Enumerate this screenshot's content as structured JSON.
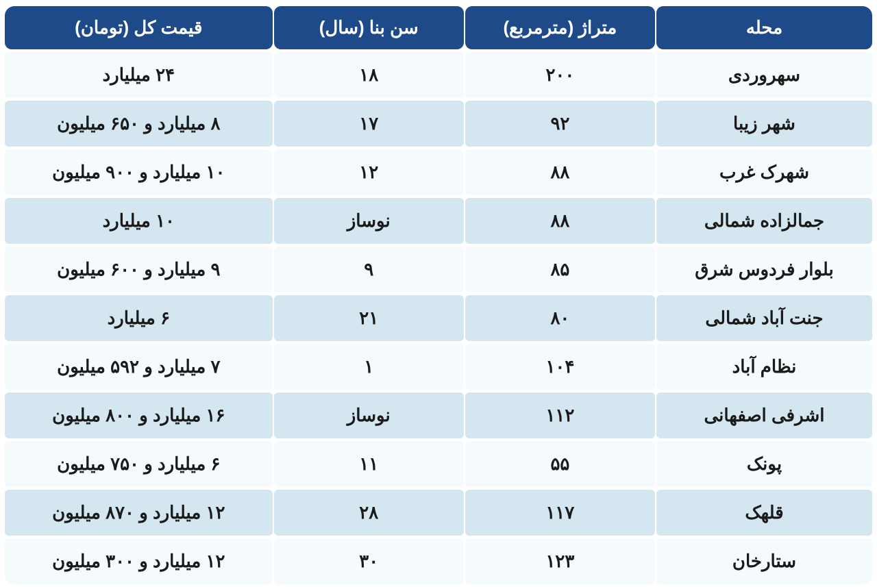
{
  "table": {
    "columns": [
      {
        "key": "neighborhood",
        "label": "محله",
        "class": "col-neighborhood"
      },
      {
        "key": "area",
        "label": "متراژ (مترمربع)",
        "class": "col-area"
      },
      {
        "key": "age",
        "label": "سن بنا (سال)",
        "class": "col-age"
      },
      {
        "key": "price",
        "label": "قیمت کل (تومان)",
        "class": "col-price"
      }
    ],
    "rows": [
      {
        "neighborhood": "سهروردی",
        "area": "۲۰۰",
        "age": "۱۸",
        "price": "۲۴ میلیارد"
      },
      {
        "neighborhood": "شهر زیبا",
        "area": "۹۲",
        "age": "۱۷",
        "price": "۸ میلیارد و ۶۵۰ میلیون"
      },
      {
        "neighborhood": "شهرک غرب",
        "area": "۸۸",
        "age": "۱۲",
        "price": "۱۰ میلیارد و ۹۰۰ میلیون"
      },
      {
        "neighborhood": "جمالزاده شمالی",
        "area": "۸۸",
        "age": "نوساز",
        "price": "۱۰ میلیارد"
      },
      {
        "neighborhood": "بلوار فردوس شرق",
        "area": "۸۵",
        "age": "۹",
        "price": "۹ میلیارد و ۶۰۰ میلیون"
      },
      {
        "neighborhood": "جنت آباد شمالی",
        "area": "۸۰",
        "age": "۲۱",
        "price": "۶ میلیارد"
      },
      {
        "neighborhood": "نظام آباد",
        "area": "۱۰۴",
        "age": "۱",
        "price": "۷ میلیارد و ۵۹۲ میلیون"
      },
      {
        "neighborhood": "اشرفی اصفهانی",
        "area": "۱۱۲",
        "age": "نوساز",
        "price": "۱۶ میلیارد و ۸۰۰ میلیون"
      },
      {
        "neighborhood": "پونک",
        "area": "۵۵",
        "age": "۱۱",
        "price": "۶ میلیارد و ۷۵۰ میلیون"
      },
      {
        "neighborhood": "قلهک",
        "area": "۱۱۷",
        "age": "۲۸",
        "price": "۱۲ میلیارد و ۸۷۰ میلیون"
      },
      {
        "neighborhood": "ستارخان",
        "area": "۱۲۳",
        "age": "۳۰",
        "price": "۱۲ میلیارد و ۳۰۰ میلیون"
      }
    ],
    "styling": {
      "header_bg": "#1e4a8a",
      "header_fg": "#ffffff",
      "row_odd_bg": "#f5fafd",
      "row_even_bg": "#d4e7f0",
      "text_color": "#1a1a1a",
      "font_size_header": 26,
      "font_size_cell": 26,
      "border_radius_outer": 14,
      "border_radius_cell": 6,
      "border_spacing_h": 2,
      "border_spacing_v": 4
    }
  }
}
